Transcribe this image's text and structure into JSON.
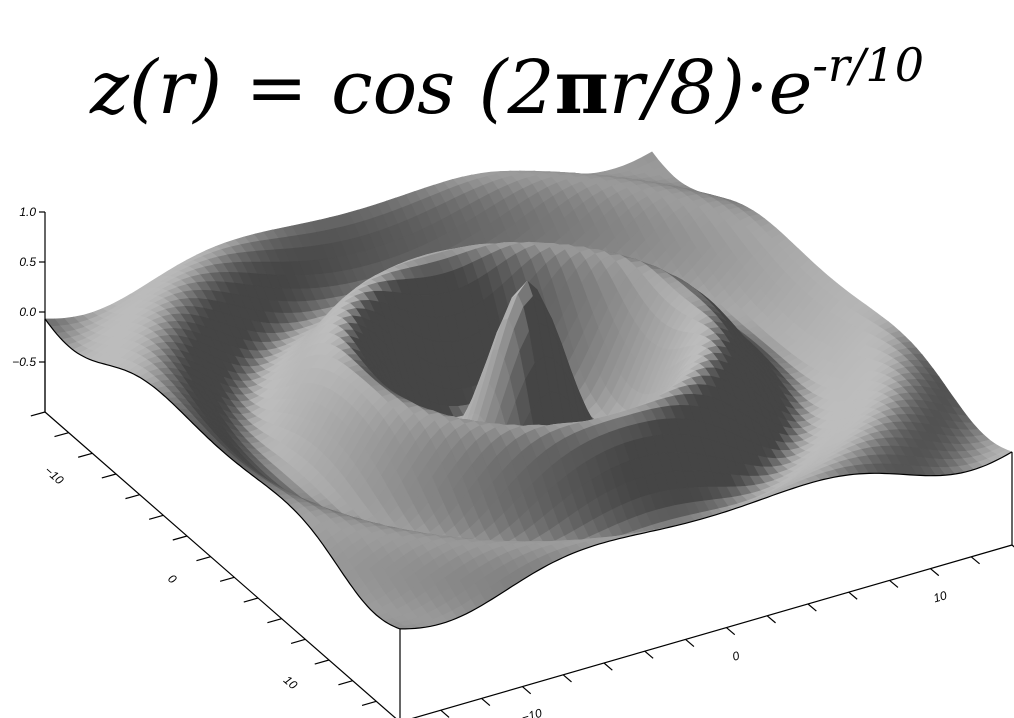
{
  "chart_data": {
    "type": "surface",
    "title_parts": {
      "lhs": "z(r) = cos (2",
      "pi": "π",
      "mid": "r/8)",
      "dot": "·",
      "base": "e",
      "exponent": "-r/10"
    },
    "function": "z(r) = cos(2πr/8) · e^(-r/10)",
    "x_range": [
      -15,
      15
    ],
    "y_range": [
      -15,
      15
    ],
    "z_range": [
      -1,
      1
    ],
    "z_ticks": [
      {
        "value": 1.0,
        "label": "1.0"
      },
      {
        "value": 0.5,
        "label": "0.5"
      },
      {
        "value": 0.0,
        "label": "0.0"
      },
      {
        "value": -0.5,
        "label": "−0.5"
      }
    ],
    "y_axis_ticks": [
      {
        "value": -10,
        "label": "−10"
      },
      {
        "value": 0,
        "label": "0"
      },
      {
        "value": 10,
        "label": "10"
      }
    ],
    "x_axis_ticks": [
      {
        "value": -10,
        "label": "−10"
      },
      {
        "value": 0,
        "label": "0"
      },
      {
        "value": 10,
        "label": "10"
      }
    ],
    "surface_color": "#9a9a9a",
    "frame_color": "#000000"
  }
}
